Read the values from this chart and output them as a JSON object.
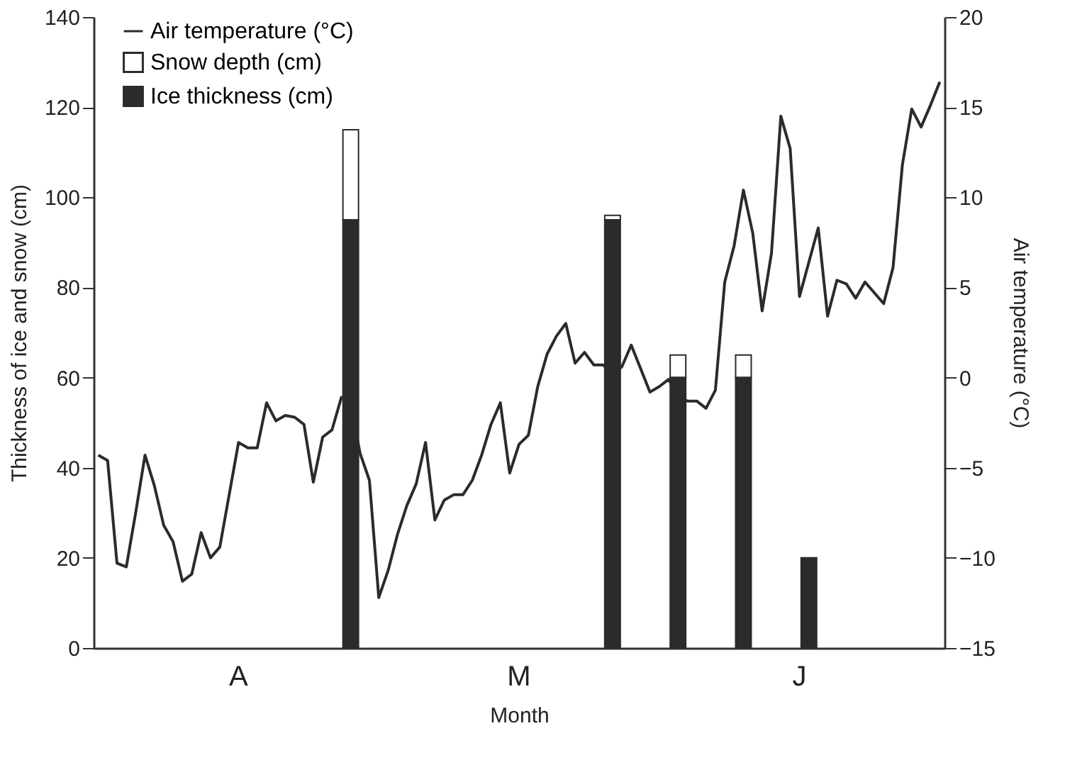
{
  "chart_data": {
    "type": "bar",
    "stacked": true,
    "xlabel": "Month",
    "ylabel": "Thickness of ice and snow (cm)",
    "y2label": "Air temperature (°C)",
    "categories": [
      null,
      null,
      null,
      null,
      null,
      null,
      null,
      null,
      null,
      null,
      null,
      null,
      null,
      null,
      null,
      "A",
      null,
      null,
      null,
      null,
      null,
      null,
      null,
      null,
      null,
      null,
      null,
      null,
      null,
      null,
      null,
      null,
      null,
      null,
      null,
      null,
      null,
      null,
      null,
      null,
      null,
      null,
      null,
      null,
      null,
      "M",
      null,
      null,
      null,
      null,
      null,
      null,
      null,
      null,
      null,
      null,
      null,
      null,
      null,
      null,
      null,
      null,
      null,
      null,
      null,
      null,
      null,
      null,
      null,
      null,
      null,
      null,
      null,
      null,
      null,
      "J",
      null,
      null,
      null,
      null,
      null,
      null,
      null,
      null,
      null,
      null,
      null,
      null,
      null,
      null,
      null
    ],
    "ylim": [
      0,
      140
    ],
    "yticks": [
      0,
      20,
      40,
      60,
      80,
      100,
      120,
      140
    ],
    "y2lim": [
      -15,
      20
    ],
    "y2ticks": [
      -15,
      -10,
      -5,
      0,
      5,
      10,
      15,
      20
    ],
    "grid": false,
    "legend": "top left",
    "series": [
      {
        "name": "Air temperature (°C)",
        "type": "line",
        "axis": "y2",
        "color": "#2b2b2b",
        "values": [
          -4.3,
          -4.6,
          -10.3,
          -10.5,
          -7.5,
          -4.3,
          -6.0,
          -8.2,
          -9.1,
          -11.3,
          -10.9,
          -8.6,
          -10.0,
          -9.4,
          -6.5,
          -3.6,
          -3.9,
          -3.9,
          -1.4,
          -2.4,
          -2.1,
          -2.2,
          -2.6,
          -5.8,
          -3.3,
          -2.9,
          -1.1,
          -1.5,
          -4.2,
          -5.7,
          -12.2,
          -10.7,
          -8.7,
          -7.1,
          -5.9,
          -3.6,
          -7.9,
          -6.8,
          -6.5,
          -6.5,
          -5.7,
          -4.3,
          -2.6,
          -1.4,
          -5.3,
          -3.7,
          -3.2,
          -0.5,
          1.3,
          2.3,
          3.0,
          0.8,
          1.4,
          0.7,
          0.7,
          0.2,
          0.6,
          1.8,
          0.5,
          -0.8,
          -0.5,
          -0.1,
          -1.0,
          -1.3,
          -1.3,
          -1.7,
          -0.7,
          5.3,
          7.3,
          10.4,
          8.0,
          3.7,
          6.9,
          14.5,
          12.7,
          4.5,
          6.4,
          8.3,
          3.4,
          5.4,
          5.2,
          4.4,
          5.3,
          4.7,
          4.1,
          6.1,
          11.8,
          14.9,
          13.9,
          15.1,
          16.4
        ]
      },
      {
        "name": "Snow depth (cm)",
        "color": "#ffffff",
        "values": [
          null,
          null,
          null,
          null,
          null,
          null,
          null,
          null,
          null,
          null,
          null,
          null,
          null,
          null,
          null,
          null,
          null,
          null,
          null,
          null,
          null,
          null,
          null,
          null,
          null,
          null,
          null,
          20,
          null,
          null,
          null,
          null,
          null,
          null,
          null,
          null,
          null,
          null,
          null,
          null,
          null,
          null,
          null,
          null,
          null,
          null,
          null,
          null,
          null,
          null,
          null,
          null,
          null,
          null,
          null,
          1,
          null,
          null,
          null,
          null,
          null,
          null,
          5,
          null,
          null,
          null,
          null,
          null,
          null,
          5,
          null,
          null,
          null,
          null,
          null,
          null,
          null,
          null,
          null,
          null,
          null,
          null,
          null,
          null,
          null,
          null,
          null,
          null,
          null,
          null,
          null
        ]
      },
      {
        "name": "Ice thickness (cm)",
        "color": "#2b2b2b",
        "values": [
          null,
          null,
          null,
          null,
          null,
          null,
          null,
          null,
          null,
          null,
          null,
          null,
          null,
          null,
          null,
          null,
          null,
          null,
          null,
          null,
          null,
          null,
          null,
          null,
          null,
          null,
          null,
          95,
          null,
          null,
          null,
          null,
          null,
          null,
          null,
          null,
          null,
          null,
          null,
          null,
          null,
          null,
          null,
          null,
          null,
          null,
          null,
          null,
          null,
          null,
          null,
          null,
          null,
          null,
          null,
          95,
          null,
          null,
          null,
          null,
          null,
          null,
          60,
          null,
          null,
          null,
          null,
          null,
          null,
          60,
          null,
          null,
          null,
          null,
          null,
          null,
          20,
          null,
          null,
          null,
          null,
          null,
          null,
          null,
          null,
          null,
          null,
          null,
          null,
          null,
          null
        ]
      }
    ]
  }
}
